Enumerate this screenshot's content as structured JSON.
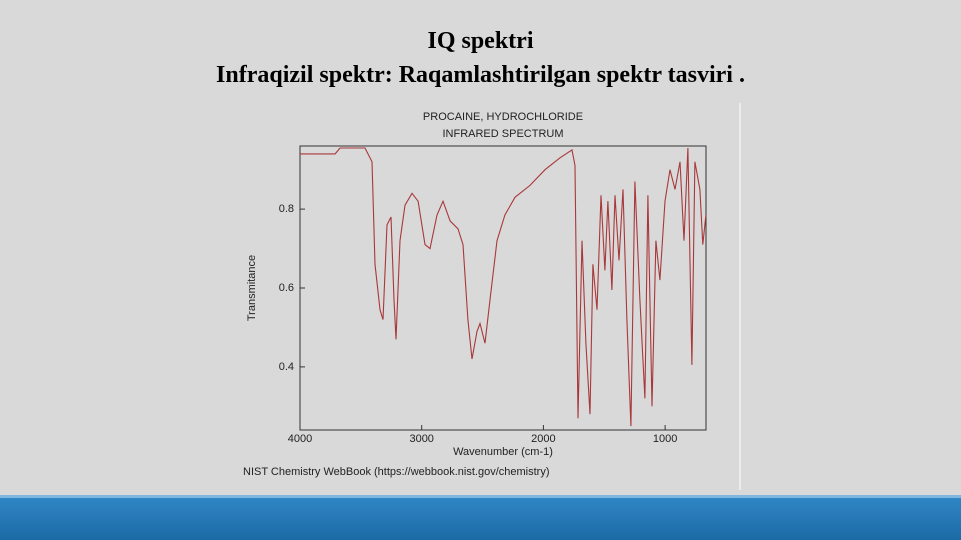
{
  "slide": {
    "title": "IQ spektri",
    "subtitle": "Infraqizil spektr: Raqamlashtirilgan spektr tasviri ."
  },
  "chart_data": {
    "type": "line",
    "title": "PROCAINE, HYDROCHLORIDE",
    "subtitle": "INFRARED SPECTRUM",
    "x_label": "Wavenumber (cm-1)",
    "y_label": "Transmitance",
    "source": "NIST Chemistry WebBook (https://webbook.nist.gov/chemistry)",
    "xlim": [
      4000,
      664
    ],
    "ylim": [
      0.24,
      0.96
    ],
    "xticks": [
      4000,
      3000,
      2000,
      1000
    ],
    "yticks": [
      0.4,
      0.6,
      0.8
    ],
    "series": [
      {
        "color": "#a8383a",
        "x": [
          4000,
          3712,
          3671,
          3466,
          3408,
          3384,
          3343,
          3318,
          3285,
          3252,
          3228,
          3211,
          3178,
          3137,
          3080,
          3030,
          2973,
          2932,
          2874,
          2825,
          2767,
          2702,
          2661,
          2620,
          2587,
          2546,
          2521,
          2480,
          2439,
          2381,
          2316,
          2233,
          2110,
          1987,
          1864,
          1765,
          1740,
          1716,
          1683,
          1651,
          1617,
          1593,
          1560,
          1527,
          1495,
          1470,
          1437,
          1412,
          1379,
          1346,
          1314,
          1281,
          1248,
          1207,
          1166,
          1141,
          1108,
          1076,
          1043,
          1001,
          960,
          919,
          878,
          845,
          813,
          780,
          755,
          714,
          690,
          665
        ],
        "values": [
          0.94,
          0.94,
          0.955,
          0.955,
          0.92,
          0.66,
          0.545,
          0.52,
          0.76,
          0.78,
          0.57,
          0.47,
          0.72,
          0.81,
          0.84,
          0.82,
          0.71,
          0.7,
          0.785,
          0.82,
          0.77,
          0.75,
          0.71,
          0.52,
          0.42,
          0.49,
          0.51,
          0.46,
          0.57,
          0.72,
          0.785,
          0.83,
          0.86,
          0.9,
          0.93,
          0.95,
          0.91,
          0.27,
          0.72,
          0.46,
          0.28,
          0.66,
          0.545,
          0.835,
          0.645,
          0.82,
          0.595,
          0.835,
          0.67,
          0.85,
          0.52,
          0.25,
          0.87,
          0.57,
          0.32,
          0.835,
          0.3,
          0.72,
          0.62,
          0.82,
          0.9,
          0.85,
          0.92,
          0.72,
          0.955,
          0.405,
          0.92,
          0.85,
          0.71,
          0.785
        ]
      }
    ]
  }
}
